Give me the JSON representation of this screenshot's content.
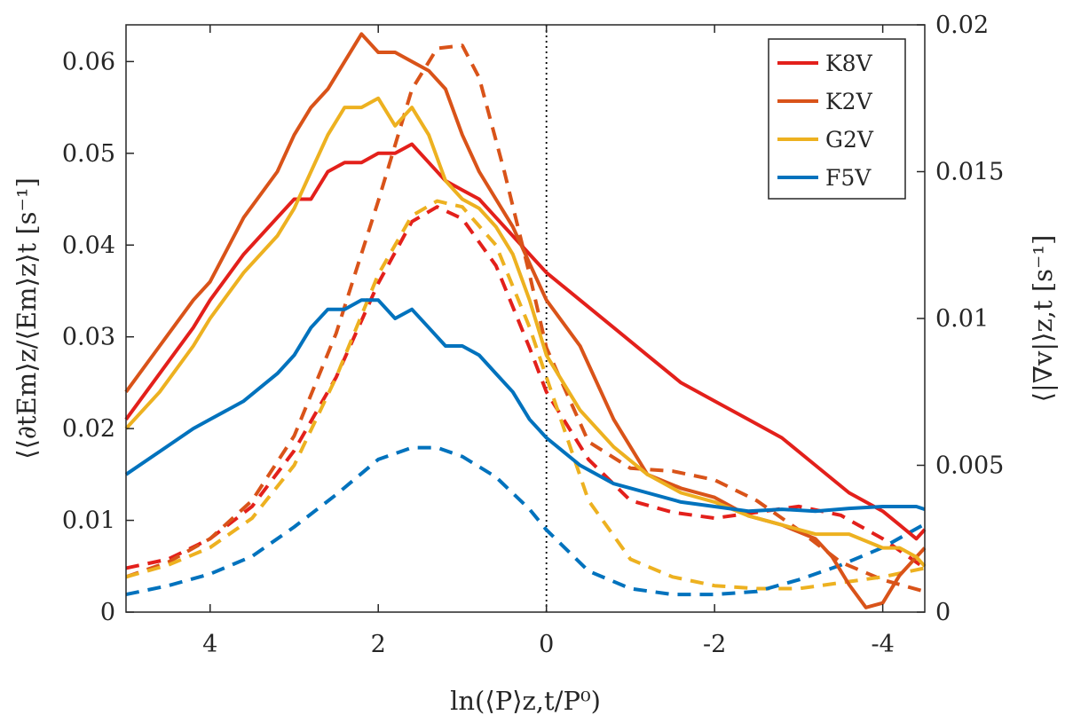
{
  "chart_data": {
    "type": "line",
    "title": "",
    "xlabel": "ln(⟨P⟩z,t/P⁰)",
    "ylabel_left": "⟨⟨∂tEm⟩z/⟨Em⟩z⟩t [s⁻¹]",
    "ylabel_right": "⟨|∇v|⟩z,t [s⁻¹]",
    "xlim": [
      5,
      -4.5
    ],
    "ylim_left": [
      0,
      0.064
    ],
    "ylim_right": [
      0,
      0.02
    ],
    "x_ticks": [
      4,
      2,
      0,
      -2,
      -4
    ],
    "x_tick_labels": [
      "4",
      "2",
      "0",
      "-2",
      "-4"
    ],
    "y_left_ticks": [
      0,
      0.01,
      0.02,
      0.03,
      0.04,
      0.05,
      0.06
    ],
    "y_left_tick_labels": [
      "0",
      "0.01",
      "0.02",
      "0.03",
      "0.04",
      "0.05",
      "0.06"
    ],
    "y_right_ticks": [
      0,
      0.005,
      0.01,
      0.015,
      0.02
    ],
    "y_right_tick_labels": [
      "0",
      "0.005",
      "0.01",
      "0.015",
      "0.02"
    ],
    "reference_line": {
      "x": 0,
      "style": "dotted"
    },
    "legend": {
      "position": "top-right"
    },
    "series": [
      {
        "name": "K8V",
        "color": "#e3201b",
        "solid": {
          "axis": "left",
          "x": [
            5,
            4.6,
            4.2,
            4,
            3.6,
            3.2,
            3,
            2.8,
            2.6,
            2.4,
            2.2,
            2,
            1.8,
            1.6,
            1.4,
            1.2,
            1,
            0.8,
            0.6,
            0.4,
            0.2,
            0,
            -0.4,
            -0.8,
            -1.2,
            -1.6,
            -2,
            -2.4,
            -2.8,
            -3.2,
            -3.6,
            -4,
            -4.2,
            -4.4,
            -4.5
          ],
          "y": [
            0.021,
            0.026,
            0.031,
            0.034,
            0.039,
            0.043,
            0.045,
            0.045,
            0.048,
            0.049,
            0.049,
            0.05,
            0.05,
            0.051,
            0.049,
            0.047,
            0.046,
            0.045,
            0.043,
            0.041,
            0.039,
            0.037,
            0.034,
            0.031,
            0.028,
            0.025,
            0.023,
            0.021,
            0.019,
            0.016,
            0.013,
            0.011,
            0.0095,
            0.008,
            0.009
          ]
        },
        "dashed": {
          "axis": "right",
          "x": [
            5,
            4.5,
            4,
            3.5,
            3,
            2.5,
            2,
            1.6,
            1.3,
            1,
            0.6,
            0.2,
            0,
            -0.5,
            -1,
            -1.5,
            -2,
            -2.5,
            -3,
            -3.5,
            -4,
            -4.5
          ],
          "y": [
            0.0015,
            0.0018,
            0.0025,
            0.0036,
            0.0055,
            0.008,
            0.0112,
            0.0133,
            0.0138,
            0.0134,
            0.0118,
            0.009,
            0.0075,
            0.0052,
            0.0038,
            0.0034,
            0.0032,
            0.0034,
            0.0036,
            0.0033,
            0.0025,
            0.0015
          ]
        }
      },
      {
        "name": "K2V",
        "color": "#d95319",
        "solid": {
          "axis": "left",
          "x": [
            5,
            4.6,
            4.2,
            4,
            3.6,
            3.2,
            3,
            2.8,
            2.6,
            2.4,
            2.2,
            2,
            1.8,
            1.6,
            1.4,
            1.2,
            1,
            0.8,
            0.6,
            0.4,
            0.2,
            0,
            -0.4,
            -0.8,
            -1.2,
            -1.6,
            -2,
            -2.4,
            -2.8,
            -3.2,
            -3.4,
            -3.6,
            -3.8,
            -4,
            -4.2,
            -4.4,
            -4.5
          ],
          "y": [
            0.024,
            0.029,
            0.034,
            0.036,
            0.043,
            0.048,
            0.052,
            0.055,
            0.057,
            0.06,
            0.063,
            0.061,
            0.061,
            0.06,
            0.059,
            0.057,
            0.052,
            0.048,
            0.045,
            0.042,
            0.038,
            0.034,
            0.029,
            0.021,
            0.015,
            0.0135,
            0.0125,
            0.0105,
            0.0095,
            0.008,
            0.006,
            0.003,
            0.0005,
            0.001,
            0.004,
            0.006,
            0.007
          ]
        },
        "dashed": {
          "axis": "right",
          "x": [
            5,
            4.5,
            4,
            3.5,
            3,
            2.5,
            2,
            1.6,
            1.3,
            1,
            0.8,
            0.5,
            0.2,
            0,
            -0.5,
            -1,
            -1.5,
            -2,
            -2.5,
            -3,
            -3.5,
            -4,
            -4.5
          ],
          "y": [
            0.0012,
            0.0017,
            0.0025,
            0.0038,
            0.006,
            0.0095,
            0.014,
            0.0178,
            0.0192,
            0.0193,
            0.0182,
            0.015,
            0.0115,
            0.009,
            0.0058,
            0.0049,
            0.0048,
            0.0045,
            0.0038,
            0.0028,
            0.0017,
            0.0011,
            0.0007
          ]
        }
      },
      {
        "name": "G2V",
        "color": "#edb120",
        "solid": {
          "axis": "left",
          "x": [
            5,
            4.6,
            4.2,
            4,
            3.6,
            3.2,
            3,
            2.8,
            2.6,
            2.4,
            2.2,
            2,
            1.8,
            1.6,
            1.4,
            1.2,
            1,
            0.8,
            0.6,
            0.4,
            0.2,
            0,
            -0.4,
            -0.8,
            -1.2,
            -1.6,
            -2,
            -2.4,
            -2.8,
            -3.2,
            -3.6,
            -4,
            -4.2,
            -4.4,
            -4.5
          ],
          "y": [
            0.02,
            0.024,
            0.029,
            0.032,
            0.037,
            0.041,
            0.044,
            0.048,
            0.052,
            0.055,
            0.055,
            0.056,
            0.053,
            0.055,
            0.052,
            0.047,
            0.045,
            0.044,
            0.042,
            0.039,
            0.034,
            0.028,
            0.022,
            0.018,
            0.015,
            0.013,
            0.012,
            0.0105,
            0.0095,
            0.0085,
            0.0085,
            0.007,
            0.007,
            0.006,
            0.005
          ]
        },
        "dashed": {
          "axis": "right",
          "x": [
            5,
            4.5,
            4,
            3.5,
            3,
            2.5,
            2,
            1.6,
            1.3,
            1,
            0.6,
            0.2,
            0,
            -0.5,
            -1,
            -1.5,
            -2,
            -2.5,
            -3,
            -3.5,
            -4,
            -4.5
          ],
          "y": [
            0.0012,
            0.0016,
            0.0022,
            0.0032,
            0.005,
            0.008,
            0.0115,
            0.0135,
            0.014,
            0.0138,
            0.0125,
            0.0097,
            0.008,
            0.0038,
            0.0018,
            0.0012,
            0.0009,
            0.0008,
            0.0008,
            0.001,
            0.0012,
            0.0015
          ]
        }
      },
      {
        "name": "F5V",
        "color": "#0072bd",
        "solid": {
          "axis": "left",
          "x": [
            5,
            4.6,
            4.2,
            4,
            3.6,
            3.2,
            3,
            2.8,
            2.6,
            2.4,
            2.2,
            2,
            1.8,
            1.6,
            1.4,
            1.2,
            1,
            0.8,
            0.6,
            0.4,
            0.2,
            0,
            -0.4,
            -0.8,
            -1.2,
            -1.6,
            -2,
            -2.4,
            -2.8,
            -3.2,
            -3.6,
            -4,
            -4.2,
            -4.4,
            -4.5
          ],
          "y": [
            0.015,
            0.0175,
            0.02,
            0.021,
            0.023,
            0.026,
            0.028,
            0.031,
            0.033,
            0.033,
            0.034,
            0.034,
            0.032,
            0.033,
            0.031,
            0.029,
            0.029,
            0.028,
            0.026,
            0.024,
            0.021,
            0.019,
            0.016,
            0.014,
            0.013,
            0.012,
            0.0115,
            0.011,
            0.0112,
            0.011,
            0.0113,
            0.0115,
            0.0115,
            0.0115,
            0.0112
          ]
        },
        "dashed": {
          "axis": "right",
          "x": [
            5,
            4.5,
            4,
            3.5,
            3,
            2.5,
            2,
            1.6,
            1.3,
            1,
            0.6,
            0.2,
            0,
            -0.5,
            -1,
            -1.5,
            -2,
            -2.5,
            -3,
            -3.5,
            -4,
            -4.5
          ],
          "y": [
            0.0006,
            0.0009,
            0.0013,
            0.0019,
            0.0029,
            0.004,
            0.0052,
            0.0056,
            0.0056,
            0.0053,
            0.0046,
            0.0035,
            0.0028,
            0.0014,
            0.0008,
            0.0006,
            0.0006,
            0.0007,
            0.0011,
            0.0016,
            0.0022,
            0.003
          ]
        }
      }
    ]
  }
}
